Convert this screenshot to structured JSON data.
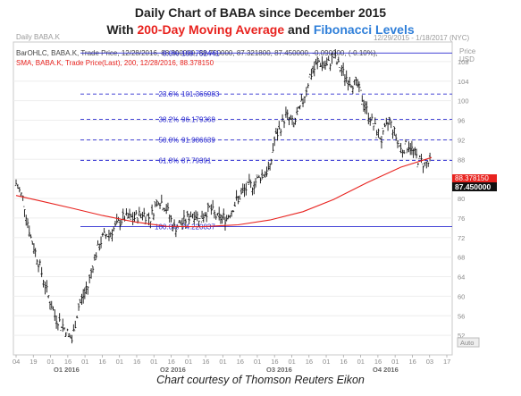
{
  "heading": {
    "line1": "Daily Chart of BABA since December 2015",
    "line2_prefix": "With ",
    "line2_ma": "200-Day Moving Average",
    "line2_mid": " and ",
    "line2_fib": "Fibonacci Levels"
  },
  "caption": "Chart courtesy of Thomson Reuters Eikon",
  "colors": {
    "price": "#111111",
    "sma": "#e8231f",
    "fib": "#2a2ad0",
    "ma_text": "#e8231f",
    "fib_text": "#2f7fd9"
  },
  "chart_data": {
    "type": "line",
    "panel_title": "Daily BABA.K",
    "date_range": "12/29/2015 - 1/18/2017 (NYC)",
    "price_axis_label": "Price",
    "currency": "USD",
    "legend": [
      "BarOHLC, BABA.K, Trade Price, 12/28/2016, 88.300000, 88.750000, 87.321800, 87.450000, -0.090000, (-0.10%),",
      "SMA, BABA.K, Trade Price(Last),  200,  12/28/2016, 88.378150"
    ],
    "ylim": [
      48,
      112
    ],
    "y_ticks": [
      52,
      56,
      60,
      64,
      68,
      72,
      76,
      80,
      84,
      88,
      92,
      96,
      100,
      104,
      108
    ],
    "y_tick_labels": [
      "52",
      "56",
      "60",
      "64",
      "68",
      "72",
      "76",
      "80",
      "84",
      "88",
      "92",
      "96",
      "100",
      "104",
      "108"
    ],
    "auto_label": "Auto",
    "x_tick_labels": [
      "04",
      "19",
      "01",
      "16",
      "01",
      "16",
      "01",
      "16",
      "01",
      "16",
      "01",
      "16",
      "01",
      "16",
      "01",
      "16",
      "01",
      "16",
      "01",
      "16",
      "01",
      "16",
      "01",
      "16",
      "03",
      "17"
    ],
    "quarters": [
      "Q1 2016",
      "Q2 2016",
      "Q3 2016",
      "Q4 2016"
    ],
    "last_price_tags": {
      "sma": "88.378150",
      "price": "87.450000"
    },
    "fibonacci": [
      {
        "label": "0.0%",
        "value_text": "109.752441",
        "value": 109.752441
      },
      {
        "label": "23.6%",
        "value_text": "101.366983",
        "value": 101.366983
      },
      {
        "label": "38.2%",
        "value_text": "96.179368",
        "value": 96.179368
      },
      {
        "label": "50.0%",
        "value_text": "91.986639",
        "value": 91.986639
      },
      {
        "label": "61.8%",
        "value_text": "87.79391",
        "value": 87.79391
      },
      {
        "label": "100.0%",
        "value_text": "74.220837",
        "value": 74.220837
      }
    ],
    "series": [
      {
        "name": "BarOHLC, BABA.K, Trade Price",
        "unit": "close",
        "x_dates": [
          "2015-12-29",
          "2016-01-04",
          "2016-01-11",
          "2016-01-19",
          "2016-01-25",
          "2016-02-01",
          "2016-02-08",
          "2016-02-16",
          "2016-02-22",
          "2016-03-01",
          "2016-03-07",
          "2016-03-14",
          "2016-03-21",
          "2016-04-01",
          "2016-04-11",
          "2016-04-18",
          "2016-04-25",
          "2016-05-02",
          "2016-05-09",
          "2016-05-16",
          "2016-05-23",
          "2016-06-01",
          "2016-06-08",
          "2016-06-16",
          "2016-06-23",
          "2016-07-01",
          "2016-07-11",
          "2016-07-18",
          "2016-07-25",
          "2016-08-01",
          "2016-08-08",
          "2016-08-12",
          "2016-08-16",
          "2016-08-22",
          "2016-08-29",
          "2016-09-06",
          "2016-09-12",
          "2016-09-20",
          "2016-09-27",
          "2016-10-03",
          "2016-10-10",
          "2016-10-17",
          "2016-10-24",
          "2016-11-01",
          "2016-11-07",
          "2016-11-14",
          "2016-11-21",
          "2016-12-01",
          "2016-12-08",
          "2016-12-16",
          "2016-12-22",
          "2016-12-28"
        ],
        "values": [
          83,
          80,
          72,
          66,
          61,
          56,
          54,
          51,
          58,
          62,
          68,
          72,
          73,
          76,
          76,
          77,
          76,
          80,
          78,
          74,
          75,
          77,
          76,
          78,
          76,
          76,
          80,
          82,
          83,
          85,
          86,
          92,
          94,
          97,
          95,
          100,
          105,
          108,
          107,
          109,
          106,
          104,
          103,
          98,
          95,
          92,
          96,
          90,
          91,
          88,
          87,
          87.45
        ]
      },
      {
        "name": "SMA, BABA.K, Trade Price(Last), 200",
        "unit": "close",
        "x_dates": [
          "2015-12-29",
          "2016-01-19",
          "2016-02-16",
          "2016-03-14",
          "2016-04-11",
          "2016-05-09",
          "2016-06-08",
          "2016-07-11",
          "2016-08-08",
          "2016-09-06",
          "2016-10-03",
          "2016-11-01",
          "2016-12-01",
          "2016-12-28"
        ],
        "values": [
          80.6,
          79.5,
          78.0,
          76.5,
          75.2,
          74.3,
          74.2,
          74.6,
          75.6,
          77.3,
          79.8,
          83.2,
          86.4,
          88.38
        ]
      }
    ]
  }
}
